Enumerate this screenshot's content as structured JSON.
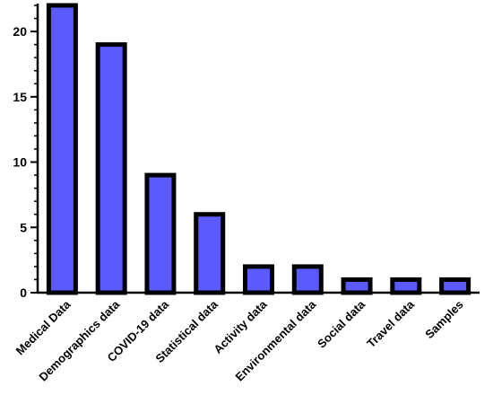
{
  "chart_data": {
    "type": "bar",
    "title": "",
    "xlabel": "",
    "ylabel": "",
    "categories": [
      "Medical Data",
      "Demographics data",
      "COVID-19 data",
      "Statistical data",
      "Activity data",
      "Environmental data",
      "Social data",
      "Travel data",
      "Samples"
    ],
    "values": [
      22,
      19,
      9,
      6,
      2,
      2,
      1,
      1,
      1
    ],
    "ylim": [
      0,
      22
    ],
    "yticks": [
      0,
      5,
      10,
      15,
      20
    ],
    "ytick_labels": [
      "0",
      "5",
      "10",
      "15",
      "20"
    ],
    "minor_ticks_per_major": 5,
    "grid": false,
    "legend": "none",
    "colors": {
      "bar_fill": "#5a5aff",
      "bar_stroke": "#000000",
      "axis": "#000000"
    }
  }
}
